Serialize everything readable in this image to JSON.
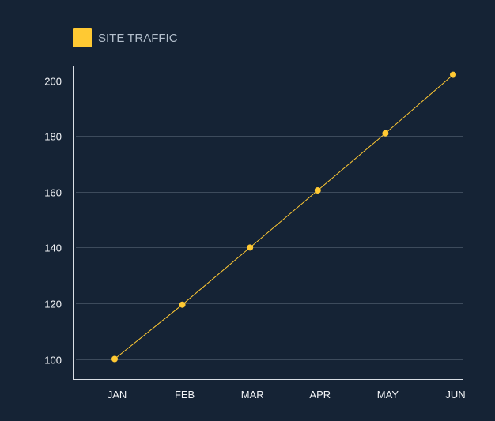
{
  "chart_data": {
    "type": "line",
    "categories": [
      "JAN",
      "FEB",
      "MAR",
      "APR",
      "MAY",
      "JUN"
    ],
    "series": [
      {
        "name": "SITE TRAFFIC",
        "values": [
          100,
          119.5,
          140,
          160.5,
          181,
          202
        ],
        "color": "#ffc933"
      }
    ],
    "yticks": [
      100,
      120,
      140,
      160,
      180,
      200
    ],
    "ylim": [
      92.5,
      205
    ],
    "grid": true,
    "legend": "top-left",
    "title": "",
    "xlabel": "",
    "ylabel": ""
  },
  "colors": {
    "background": "#152335",
    "grid": "#3d4b5c",
    "axis": "#d9dee5",
    "text": "#f2f4f7",
    "legend_text": "#b3bfcc"
  }
}
